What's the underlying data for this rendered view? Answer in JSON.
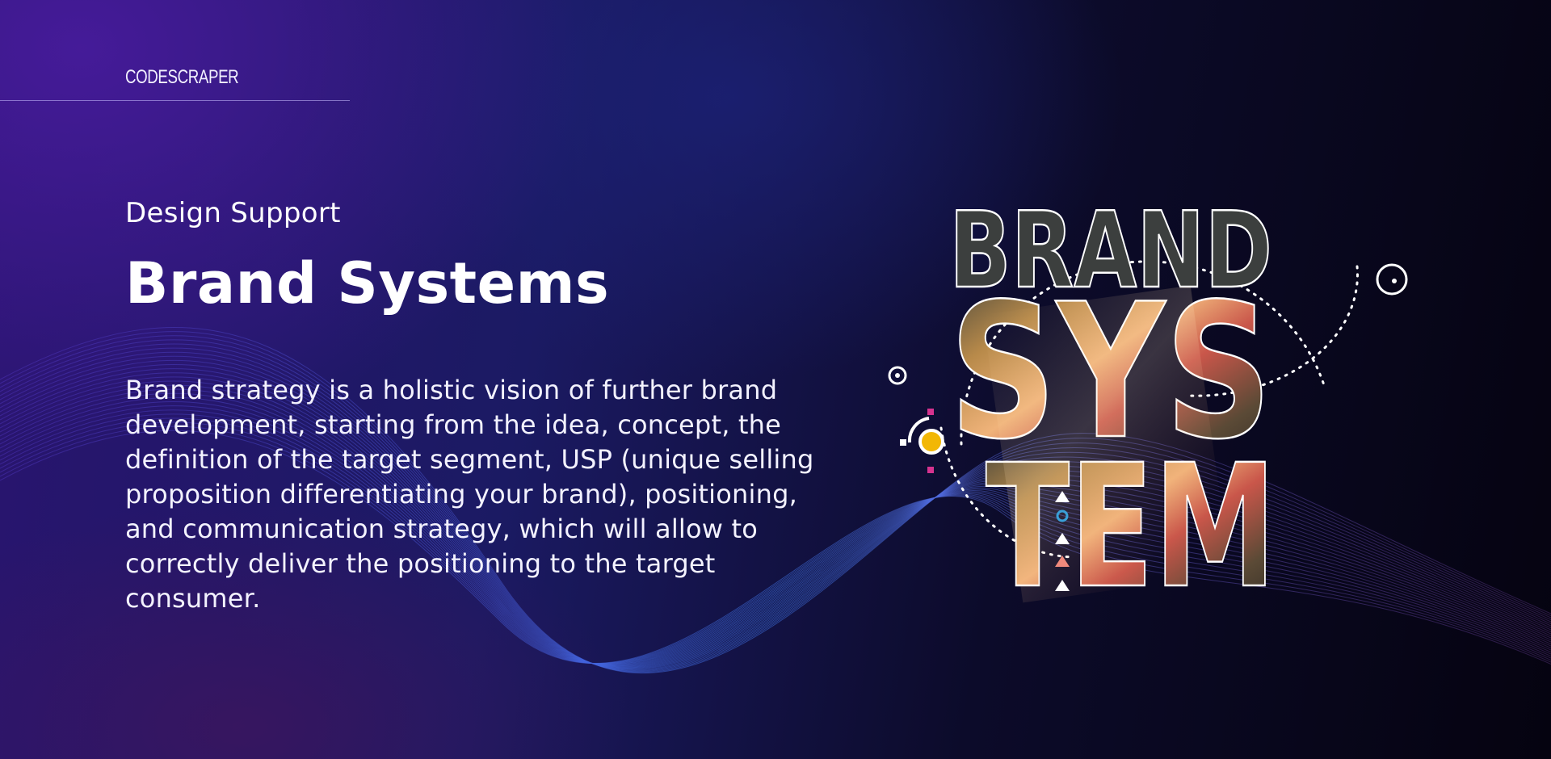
{
  "header": {
    "logo_text": "CODESCRAPER"
  },
  "hero": {
    "eyebrow": "Design Support",
    "title": "Brand Systems",
    "description": "Brand strategy is a holistic vision of further brand development, starting from the idea, concept, the definition of the target segment, USP (unique selling proposition differentiating your brand), positioning, and communication strategy, which will allow to correctly deliver the positioning to the target consumer."
  },
  "artwork": {
    "word_lines": [
      "BRAND",
      "SYS",
      "TEM"
    ],
    "accent_colors": {
      "yellow": "#f2b705",
      "magenta": "#d6338f",
      "cyan": "#3aa0d8",
      "salmon": "#f08a7c"
    }
  },
  "colors": {
    "background_start": "#2a1470",
    "background_end": "#050310",
    "text": "#ffffff"
  }
}
